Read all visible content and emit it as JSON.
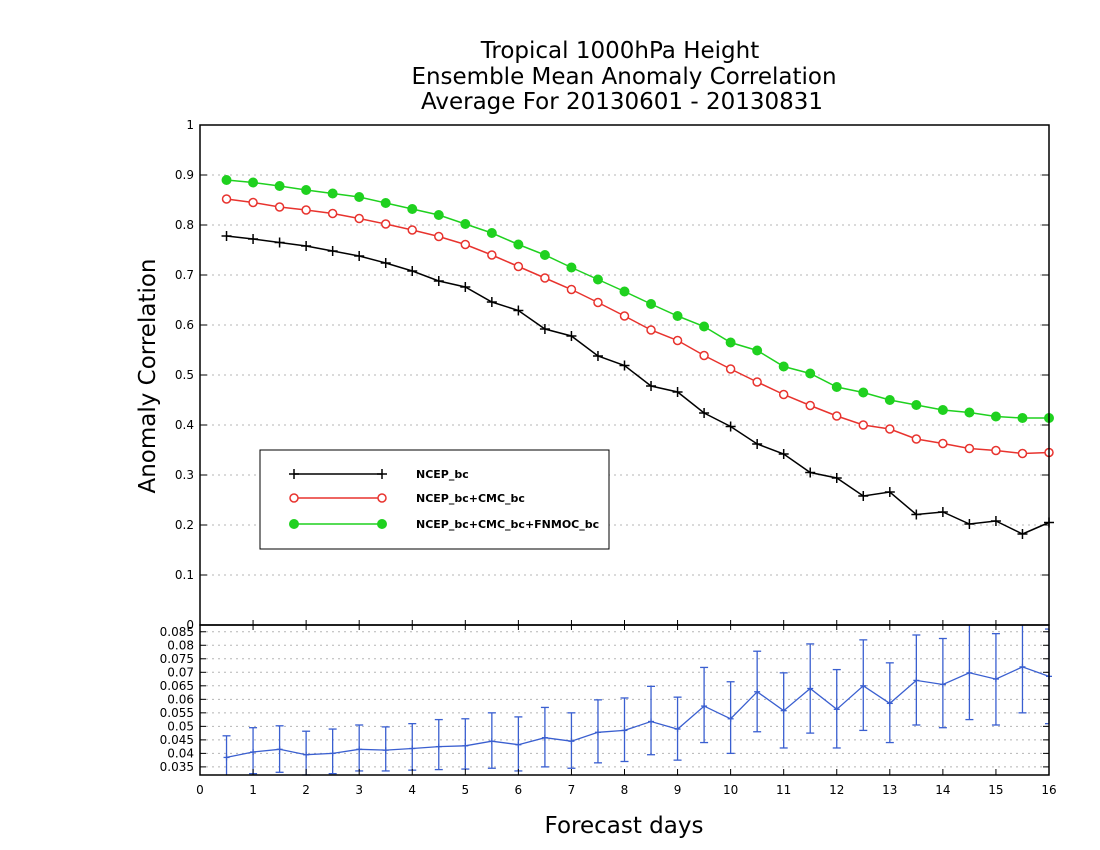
{
  "chart_data": [
    {
      "type": "line",
      "title": [
        "Tropical 1000hPa Height",
        "Ensemble Mean Anomaly Correlation",
        "Average For 20130601 - 20130831"
      ],
      "ylabel": "Anomaly Correlation",
      "ylim": [
        0,
        1
      ],
      "yticks": [
        "0",
        "0.1",
        "0.2",
        "0.3",
        "0.4",
        "0.5",
        "0.6",
        "0.7",
        "0.8",
        "0.9",
        "1"
      ],
      "xlim": [
        0,
        16
      ],
      "grid": true,
      "legend_position": "lower-left",
      "x": [
        0.5,
        1,
        1.5,
        2,
        2.5,
        3,
        3.5,
        4,
        4.5,
        5,
        5.5,
        6,
        6.5,
        7,
        7.5,
        8,
        8.5,
        9,
        9.5,
        10,
        10.5,
        11,
        11.5,
        12,
        12.5,
        13,
        13.5,
        14,
        14.5,
        15,
        15.5,
        16
      ],
      "series": [
        {
          "name": "NCEP_bc",
          "color": "#000000",
          "marker": "plus",
          "values": [
            0.778,
            0.772,
            0.765,
            0.758,
            0.748,
            0.738,
            0.724,
            0.708,
            0.688,
            0.676,
            0.646,
            0.629,
            0.592,
            0.578,
            0.538,
            0.519,
            0.478,
            0.466,
            0.424,
            0.397,
            0.362,
            0.342,
            0.305,
            0.294,
            0.258,
            0.266,
            0.221,
            0.226,
            0.202,
            0.208,
            0.182,
            0.205
          ]
        },
        {
          "name": "NCEP_bc+CMC_bc",
          "color": "#e8332e",
          "marker": "open-circle",
          "values": [
            0.852,
            0.845,
            0.836,
            0.83,
            0.823,
            0.813,
            0.802,
            0.79,
            0.777,
            0.761,
            0.74,
            0.717,
            0.694,
            0.671,
            0.645,
            0.618,
            0.59,
            0.569,
            0.539,
            0.512,
            0.486,
            0.461,
            0.439,
            0.418,
            0.4,
            0.392,
            0.372,
            0.363,
            0.353,
            0.349,
            0.343,
            0.345
          ]
        },
        {
          "name": "NCEP_bc+CMC_bc+FNMOC_bc",
          "color": "#1fd11f",
          "marker": "filled-circle",
          "values": [
            0.89,
            0.885,
            0.878,
            0.87,
            0.863,
            0.856,
            0.844,
            0.832,
            0.82,
            0.802,
            0.784,
            0.761,
            0.74,
            0.715,
            0.691,
            0.667,
            0.642,
            0.618,
            0.597,
            0.565,
            0.549,
            0.517,
            0.503,
            0.476,
            0.465,
            0.45,
            0.44,
            0.43,
            0.425,
            0.417,
            0.414,
            0.414
          ]
        }
      ]
    },
    {
      "type": "line",
      "xlabel": "Forecast days",
      "xlim": [
        0,
        16
      ],
      "xticks": [
        "0",
        "1",
        "2",
        "3",
        "4",
        "5",
        "6",
        "7",
        "8",
        "9",
        "10",
        "11",
        "12",
        "13",
        "14",
        "15",
        "16"
      ],
      "ylim": [
        0.032,
        0.0875
      ],
      "yticks": [
        "0.035",
        "0.04",
        "0.045",
        "0.05",
        "0.055",
        "0.06",
        "0.065",
        "0.07",
        "0.075",
        "0.08",
        "0.085"
      ],
      "grid": true,
      "color": "#3a5fd0",
      "error_bars": true,
      "x": [
        0.5,
        1,
        1.5,
        2,
        2.5,
        3,
        3.5,
        4,
        4.5,
        5,
        5.5,
        6,
        6.5,
        7,
        7.5,
        8,
        8.5,
        9,
        9.5,
        10,
        10.5,
        11,
        11.5,
        12,
        12.5,
        13,
        13.5,
        14,
        14.5,
        15,
        15.5,
        16
      ],
      "values": [
        0.0385,
        0.0405,
        0.0415,
        0.0395,
        0.04,
        0.0415,
        0.0412,
        0.0418,
        0.0425,
        0.0428,
        0.0445,
        0.0432,
        0.0458,
        0.0445,
        0.0478,
        0.0485,
        0.0518,
        0.049,
        0.0575,
        0.0528,
        0.0628,
        0.0558,
        0.064,
        0.0563,
        0.065,
        0.0585,
        0.067,
        0.0655,
        0.0698,
        0.0675,
        0.072,
        0.0685
      ],
      "err_low": [
        0.0305,
        0.0325,
        0.033,
        0.032,
        0.0325,
        0.0335,
        0.0335,
        0.0338,
        0.034,
        0.0342,
        0.0345,
        0.0335,
        0.035,
        0.0345,
        0.0365,
        0.037,
        0.0395,
        0.0375,
        0.044,
        0.04,
        0.048,
        0.042,
        0.0475,
        0.042,
        0.0485,
        0.044,
        0.0505,
        0.0495,
        0.0525,
        0.0505,
        0.055,
        0.051
      ],
      "err_high": [
        0.0465,
        0.0495,
        0.0502,
        0.0482,
        0.049,
        0.0505,
        0.0498,
        0.051,
        0.0525,
        0.0528,
        0.055,
        0.0535,
        0.057,
        0.055,
        0.0598,
        0.0605,
        0.0648,
        0.0608,
        0.0718,
        0.0665,
        0.0778,
        0.0698,
        0.0805,
        0.071,
        0.082,
        0.0735,
        0.0838,
        0.0825,
        0.088,
        0.0843,
        0.09,
        0.086
      ]
    }
  ]
}
